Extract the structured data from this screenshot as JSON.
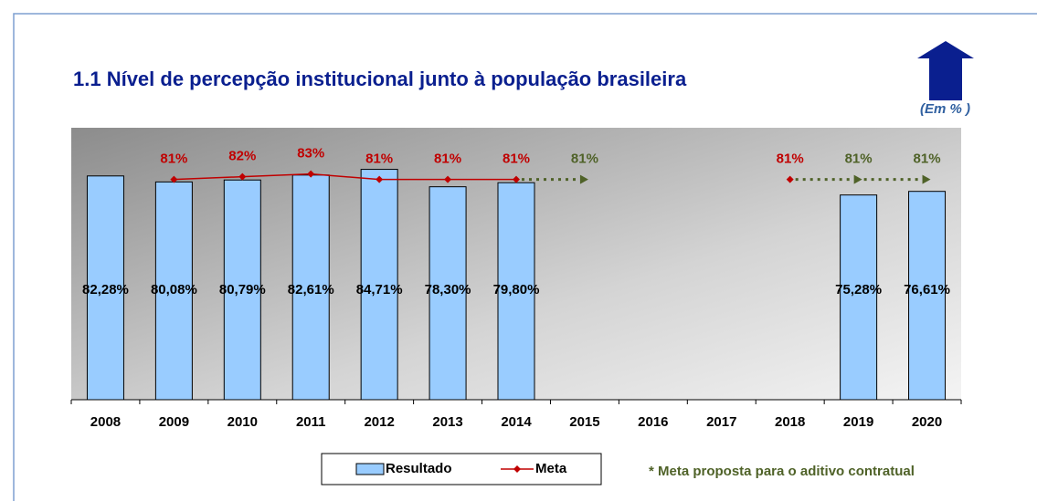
{
  "chart_data": {
    "type": "bar",
    "title": "1.1 Nível de percepção institucional junto à população brasileira",
    "subtitle": "(Em % )",
    "annotation": "* Meta proposta para o aditivo contratual",
    "categories": [
      "2008",
      "2009",
      "2010",
      "2011",
      "2012",
      "2013",
      "2014",
      "2015",
      "2016",
      "2017",
      "2018",
      "2019",
      "2020"
    ],
    "ylim": [
      0,
      100
    ],
    "series": [
      {
        "name": "Resultado",
        "type": "bar",
        "color": "#99ccff",
        "values": [
          82.28,
          80.08,
          80.79,
          82.61,
          84.71,
          78.3,
          79.8,
          null,
          null,
          null,
          null,
          75.28,
          76.61
        ],
        "value_labels": [
          "82,28%",
          "80,08%",
          "80,79%",
          "82,61%",
          "84,71%",
          "78,30%",
          "79,80%",
          null,
          null,
          null,
          null,
          "75,28%",
          "76,61%"
        ]
      },
      {
        "name": "Meta",
        "type": "line",
        "color": "#c00000",
        "values": [
          null,
          81,
          82,
          83,
          81,
          81,
          81,
          null,
          null,
          null,
          81,
          null,
          null
        ],
        "value_labels": [
          null,
          "81%",
          "82%",
          "83%",
          "81%",
          "81%",
          "81%",
          null,
          null,
          null,
          "81%",
          null,
          null
        ]
      },
      {
        "type": "dotted",
        "color": "#4f6228",
        "values": [
          null,
          null,
          null,
          null,
          null,
          null,
          null,
          81,
          null,
          null,
          null,
          81,
          81
        ],
        "value_labels": [
          null,
          null,
          null,
          null,
          null,
          null,
          null,
          "81%",
          null,
          null,
          null,
          "81%",
          "81%"
        ]
      }
    ]
  }
}
